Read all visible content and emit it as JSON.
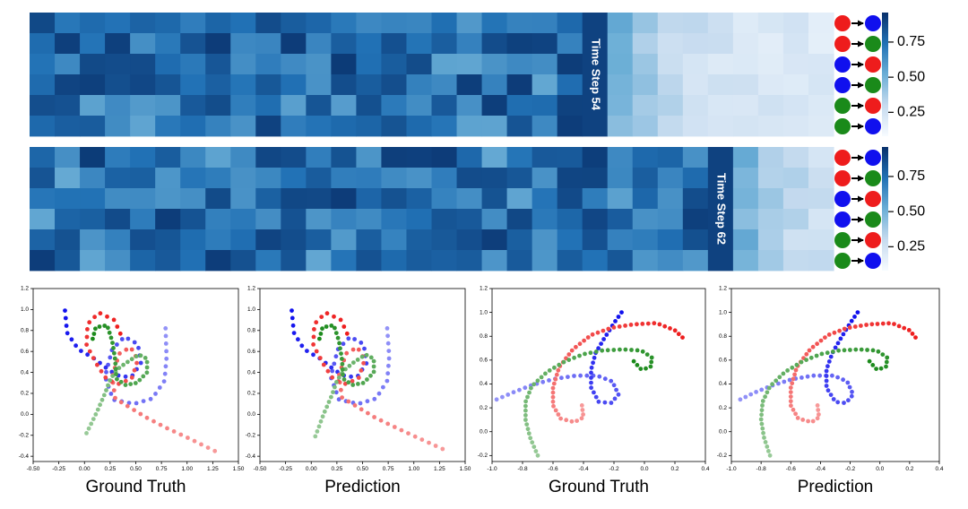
{
  "colors": {
    "red": "#ee1c1c",
    "green": "#1a8a1a",
    "blue": "#1010ee",
    "dark_blue": "#08306b",
    "light_blue": "#f7fbff"
  },
  "heatmaps": [
    {
      "id": "heatmap-top",
      "type": "heatmap",
      "label": "Time Step 54",
      "rows": 6,
      "cols": 32,
      "time_step": 54,
      "seed": 54,
      "colorbar": {
        "ticks": [
          0.75,
          0.5,
          0.25
        ],
        "tick_labels": [
          "0.75",
          "0.50",
          "0.25"
        ],
        "range": [
          0.08,
          0.96
        ]
      },
      "row_pairs": [
        [
          "red",
          "blue"
        ],
        [
          "red",
          "green"
        ],
        [
          "blue",
          "red"
        ],
        [
          "blue",
          "green"
        ],
        [
          "green",
          "red"
        ],
        [
          "green",
          "blue"
        ]
      ]
    },
    {
      "id": "heatmap-bottom",
      "type": "heatmap",
      "label": "Time Step 62",
      "rows": 6,
      "cols": 32,
      "time_step": 62,
      "seed": 62,
      "colorbar": {
        "ticks": [
          0.75,
          0.5,
          0.25
        ],
        "tick_labels": [
          "0.75",
          "0.50",
          "0.25"
        ],
        "range": [
          0.08,
          0.96
        ]
      },
      "row_pairs": [
        [
          "red",
          "blue"
        ],
        [
          "red",
          "green"
        ],
        [
          "blue",
          "red"
        ],
        [
          "blue",
          "green"
        ],
        [
          "green",
          "red"
        ],
        [
          "green",
          "blue"
        ]
      ]
    }
  ],
  "chart_data": [
    {
      "type": "scatter",
      "title": "Ground Truth",
      "xlim": [
        -0.5,
        1.5
      ],
      "ylim": [
        -0.45,
        1.2
      ],
      "xticks": [
        -0.5,
        -0.25,
        0.0,
        0.25,
        0.5,
        0.75,
        1.0,
        1.25,
        1.5
      ],
      "xtick_labels": [
        "-0.50",
        "-0.25",
        "0.00",
        "0.25",
        "0.50",
        "0.75",
        "1.00",
        "1.25",
        "1.50"
      ],
      "yticks": [
        -0.4,
        -0.2,
        0.0,
        0.2,
        0.4,
        0.6,
        0.8,
        1.0,
        1.2
      ],
      "ytick_labels": [
        "-0.4",
        "-0.2",
        "0.0",
        "0.2",
        "0.4",
        "0.6",
        "0.8",
        "1.0",
        "1.2"
      ],
      "series": [
        {
          "name": "blue",
          "color": "blue",
          "points": [
            [
              0.79,
              0.82
            ],
            [
              0.8,
              0.55
            ],
            [
              0.78,
              0.32
            ],
            [
              0.66,
              0.15
            ],
            [
              0.48,
              0.1
            ],
            [
              0.28,
              0.14
            ],
            [
              0.2,
              0.36
            ],
            [
              0.27,
              0.62
            ],
            [
              0.39,
              0.74
            ],
            [
              0.52,
              0.67
            ],
            [
              0.55,
              0.49
            ],
            [
              0.46,
              0.36
            ],
            [
              0.35,
              0.36
            ],
            [
              0.24,
              0.42
            ],
            [
              0.1,
              0.53
            ],
            [
              -0.06,
              0.62
            ],
            [
              -0.17,
              0.78
            ],
            [
              -0.19,
              0.99
            ]
          ]
        },
        {
          "name": "red",
          "color": "red",
          "points": [
            [
              1.27,
              -0.35
            ],
            [
              1.02,
              -0.23
            ],
            [
              0.8,
              -0.13
            ],
            [
              0.62,
              -0.04
            ],
            [
              0.45,
              0.06
            ],
            [
              0.3,
              0.15
            ],
            [
              0.27,
              0.36
            ],
            [
              0.34,
              0.58
            ],
            [
              0.45,
              0.64
            ],
            [
              0.52,
              0.52
            ],
            [
              0.46,
              0.34
            ],
            [
              0.33,
              0.29
            ],
            [
              0.22,
              0.33
            ],
            [
              0.13,
              0.46
            ],
            [
              0.02,
              0.66
            ],
            [
              0.03,
              0.86
            ],
            [
              0.14,
              0.97
            ],
            [
              0.29,
              0.9
            ],
            [
              0.35,
              0.77
            ]
          ]
        },
        {
          "name": "green",
          "color": "green",
          "points": [
            [
              0.02,
              -0.18
            ],
            [
              0.12,
              0.02
            ],
            [
              0.2,
              0.2
            ],
            [
              0.25,
              0.33
            ],
            [
              0.32,
              0.43
            ],
            [
              0.42,
              0.5
            ],
            [
              0.53,
              0.57
            ],
            [
              0.61,
              0.53
            ],
            [
              0.61,
              0.4
            ],
            [
              0.51,
              0.3
            ],
            [
              0.4,
              0.28
            ],
            [
              0.31,
              0.34
            ],
            [
              0.3,
              0.52
            ],
            [
              0.27,
              0.7
            ],
            [
              0.22,
              0.85
            ],
            [
              0.11,
              0.83
            ],
            [
              0.08,
              0.72
            ]
          ]
        }
      ]
    },
    {
      "type": "scatter",
      "title": "Prediction",
      "xlim": [
        -0.5,
        1.5
      ],
      "ylim": [
        -0.45,
        1.2
      ],
      "xticks": [
        -0.5,
        -0.25,
        0.0,
        0.25,
        0.5,
        0.75,
        1.0,
        1.25,
        1.5
      ],
      "xtick_labels": [
        "-0.50",
        "-0.25",
        "0.00",
        "0.25",
        "0.50",
        "0.75",
        "1.00",
        "1.25",
        "1.50"
      ],
      "yticks": [
        -0.4,
        -0.2,
        0.0,
        0.2,
        0.4,
        0.6,
        0.8,
        1.0,
        1.2
      ],
      "ytick_labels": [
        "-0.4",
        "-0.2",
        "0.0",
        "0.2",
        "0.4",
        "0.6",
        "0.8",
        "1.0",
        "1.2"
      ],
      "series": [
        {
          "name": "blue",
          "color": "blue",
          "points": [
            [
              0.74,
              0.82
            ],
            [
              0.76,
              0.55
            ],
            [
              0.74,
              0.32
            ],
            [
              0.63,
              0.15
            ],
            [
              0.46,
              0.1
            ],
            [
              0.27,
              0.14
            ],
            [
              0.19,
              0.36
            ],
            [
              0.26,
              0.62
            ],
            [
              0.38,
              0.74
            ],
            [
              0.51,
              0.67
            ],
            [
              0.54,
              0.49
            ],
            [
              0.45,
              0.36
            ],
            [
              0.34,
              0.36
            ],
            [
              0.23,
              0.42
            ],
            [
              0.09,
              0.53
            ],
            [
              -0.07,
              0.62
            ],
            [
              -0.17,
              0.78
            ],
            [
              -0.19,
              0.99
            ]
          ]
        },
        {
          "name": "red",
          "color": "red",
          "points": [
            [
              1.28,
              -0.33
            ],
            [
              1.03,
              -0.22
            ],
            [
              0.81,
              -0.12
            ],
            [
              0.62,
              -0.03
            ],
            [
              0.45,
              0.07
            ],
            [
              0.3,
              0.16
            ],
            [
              0.27,
              0.37
            ],
            [
              0.34,
              0.58
            ],
            [
              0.45,
              0.64
            ],
            [
              0.52,
              0.52
            ],
            [
              0.46,
              0.34
            ],
            [
              0.33,
              0.29
            ],
            [
              0.22,
              0.33
            ],
            [
              0.13,
              0.46
            ],
            [
              0.02,
              0.66
            ],
            [
              0.03,
              0.86
            ],
            [
              0.14,
              0.97
            ],
            [
              0.29,
              0.9
            ],
            [
              0.35,
              0.77
            ]
          ]
        },
        {
          "name": "green",
          "color": "green",
          "points": [
            [
              0.04,
              -0.21
            ],
            [
              0.12,
              0.0
            ],
            [
              0.2,
              0.18
            ],
            [
              0.25,
              0.32
            ],
            [
              0.32,
              0.42
            ],
            [
              0.42,
              0.5
            ],
            [
              0.53,
              0.57
            ],
            [
              0.61,
              0.53
            ],
            [
              0.61,
              0.4
            ],
            [
              0.51,
              0.3
            ],
            [
              0.4,
              0.28
            ],
            [
              0.31,
              0.34
            ],
            [
              0.3,
              0.52
            ],
            [
              0.27,
              0.7
            ],
            [
              0.22,
              0.85
            ],
            [
              0.11,
              0.83
            ],
            [
              0.08,
              0.72
            ]
          ]
        }
      ]
    },
    {
      "type": "scatter",
      "title": "Ground Truth",
      "xlim": [
        -1.0,
        0.4
      ],
      "ylim": [
        -0.25,
        1.2
      ],
      "xticks": [
        -1.0,
        -0.8,
        -0.6,
        -0.4,
        -0.2,
        0.0,
        0.2,
        0.4
      ],
      "xtick_labels": [
        "-1.0",
        "-0.8",
        "-0.6",
        "-0.4",
        "-0.2",
        "0.0",
        "0.2",
        "0.4"
      ],
      "yticks": [
        -0.2,
        0.0,
        0.2,
        0.4,
        0.6,
        0.8,
        1.0,
        1.2
      ],
      "ytick_labels": [
        "-0.2",
        "0.0",
        "0.2",
        "0.4",
        "0.6",
        "0.8",
        "1.0",
        "1.2"
      ],
      "series": [
        {
          "name": "blue",
          "color": "blue",
          "points": [
            [
              -0.97,
              0.27
            ],
            [
              -0.86,
              0.33
            ],
            [
              -0.74,
              0.39
            ],
            [
              -0.6,
              0.44
            ],
            [
              -0.45,
              0.47
            ],
            [
              -0.31,
              0.47
            ],
            [
              -0.21,
              0.42
            ],
            [
              -0.17,
              0.31
            ],
            [
              -0.22,
              0.24
            ],
            [
              -0.3,
              0.25
            ],
            [
              -0.35,
              0.37
            ],
            [
              -0.35,
              0.52
            ],
            [
              -0.32,
              0.66
            ],
            [
              -0.26,
              0.79
            ],
            [
              -0.2,
              0.91
            ],
            [
              -0.15,
              1.0
            ]
          ]
        },
        {
          "name": "red",
          "color": "red",
          "points": [
            [
              -0.41,
              0.22
            ],
            [
              -0.4,
              0.12
            ],
            [
              -0.46,
              0.08
            ],
            [
              -0.55,
              0.11
            ],
            [
              -0.6,
              0.22
            ],
            [
              -0.6,
              0.37
            ],
            [
              -0.56,
              0.54
            ],
            [
              -0.47,
              0.69
            ],
            [
              -0.35,
              0.81
            ],
            [
              -0.22,
              0.87
            ],
            [
              -0.07,
              0.9
            ],
            [
              0.08,
              0.91
            ],
            [
              0.2,
              0.85
            ],
            [
              0.25,
              0.79
            ]
          ]
        },
        {
          "name": "green",
          "color": "green",
          "points": [
            [
              -0.7,
              -0.2
            ],
            [
              -0.75,
              -0.05
            ],
            [
              -0.78,
              0.1
            ],
            [
              -0.78,
              0.25
            ],
            [
              -0.74,
              0.38
            ],
            [
              -0.64,
              0.5
            ],
            [
              -0.52,
              0.59
            ],
            [
              -0.4,
              0.65
            ],
            [
              -0.28,
              0.68
            ],
            [
              -0.14,
              0.69
            ],
            [
              -0.02,
              0.68
            ],
            [
              0.05,
              0.62
            ],
            [
              0.04,
              0.54
            ],
            [
              -0.02,
              0.52
            ],
            [
              -0.07,
              0.59
            ]
          ]
        }
      ]
    },
    {
      "type": "scatter",
      "title": "Prediction",
      "xlim": [
        -1.0,
        0.4
      ],
      "ylim": [
        -0.25,
        1.2
      ],
      "xticks": [
        -1.0,
        -0.8,
        -0.6,
        -0.4,
        -0.2,
        0.0,
        0.2,
        0.4
      ],
      "xtick_labels": [
        "-1.0",
        "-0.8",
        "-0.6",
        "-0.4",
        "-0.2",
        "0.0",
        "0.2",
        "0.4"
      ],
      "yticks": [
        -0.2,
        0.0,
        0.2,
        0.4,
        0.6,
        0.8,
        1.0,
        1.2
      ],
      "ytick_labels": [
        "-0.2",
        "0.0",
        "0.2",
        "0.4",
        "0.6",
        "0.8",
        "1.0",
        "1.2"
      ],
      "series": [
        {
          "name": "blue",
          "color": "blue",
          "points": [
            [
              -0.94,
              0.27
            ],
            [
              -0.84,
              0.33
            ],
            [
              -0.72,
              0.39
            ],
            [
              -0.59,
              0.44
            ],
            [
              -0.45,
              0.47
            ],
            [
              -0.31,
              0.47
            ],
            [
              -0.22,
              0.42
            ],
            [
              -0.18,
              0.31
            ],
            [
              -0.23,
              0.24
            ],
            [
              -0.3,
              0.25
            ],
            [
              -0.36,
              0.37
            ],
            [
              -0.36,
              0.52
            ],
            [
              -0.32,
              0.66
            ],
            [
              -0.26,
              0.79
            ],
            [
              -0.2,
              0.91
            ],
            [
              -0.15,
              1.0
            ]
          ]
        },
        {
          "name": "red",
          "color": "red",
          "points": [
            [
              -0.42,
              0.22
            ],
            [
              -0.41,
              0.12
            ],
            [
              -0.46,
              0.08
            ],
            [
              -0.55,
              0.11
            ],
            [
              -0.6,
              0.22
            ],
            [
              -0.6,
              0.37
            ],
            [
              -0.56,
              0.54
            ],
            [
              -0.47,
              0.69
            ],
            [
              -0.35,
              0.81
            ],
            [
              -0.22,
              0.87
            ],
            [
              -0.07,
              0.9
            ],
            [
              0.08,
              0.91
            ],
            [
              0.2,
              0.85
            ],
            [
              0.24,
              0.79
            ]
          ]
        },
        {
          "name": "green",
          "color": "green",
          "points": [
            [
              -0.74,
              -0.2
            ],
            [
              -0.78,
              -0.05
            ],
            [
              -0.8,
              0.1
            ],
            [
              -0.79,
              0.25
            ],
            [
              -0.74,
              0.38
            ],
            [
              -0.64,
              0.5
            ],
            [
              -0.52,
              0.59
            ],
            [
              -0.4,
              0.65
            ],
            [
              -0.28,
              0.68
            ],
            [
              -0.14,
              0.69
            ],
            [
              -0.02,
              0.68
            ],
            [
              0.05,
              0.62
            ],
            [
              0.04,
              0.54
            ],
            [
              -0.02,
              0.52
            ],
            [
              -0.07,
              0.59
            ]
          ]
        }
      ]
    }
  ]
}
